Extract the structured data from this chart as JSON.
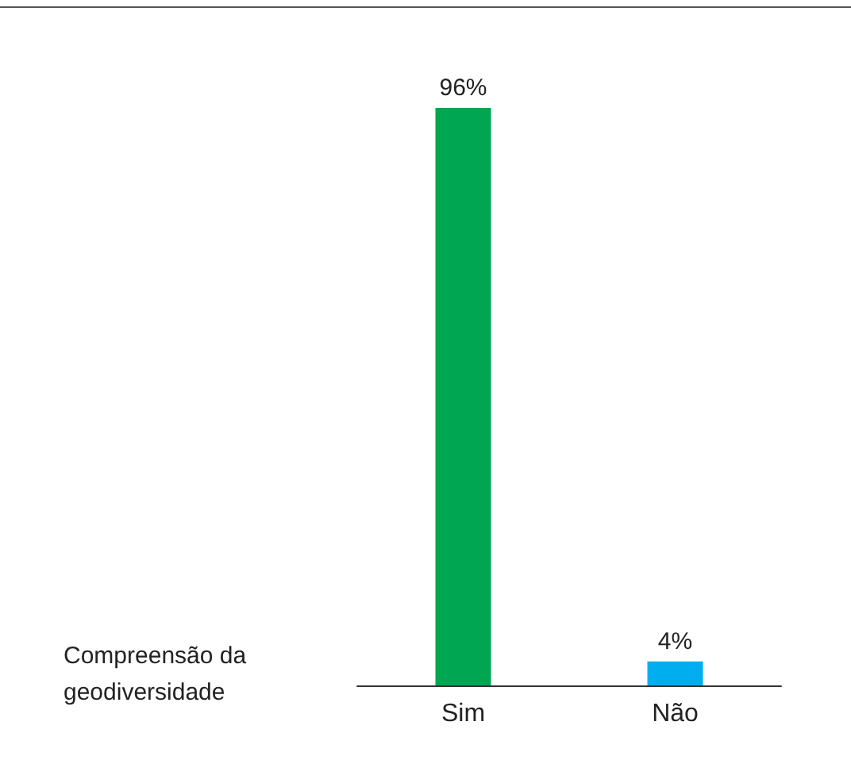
{
  "chart_data": {
    "type": "bar",
    "xlabel": "Compreensão da geodiversidade",
    "categories": [
      "Sim",
      "Não"
    ],
    "values": [
      96,
      4
    ],
    "colors": [
      "#00a651",
      "#00aeef"
    ],
    "value_labels": [
      "96%",
      "4%"
    ]
  }
}
